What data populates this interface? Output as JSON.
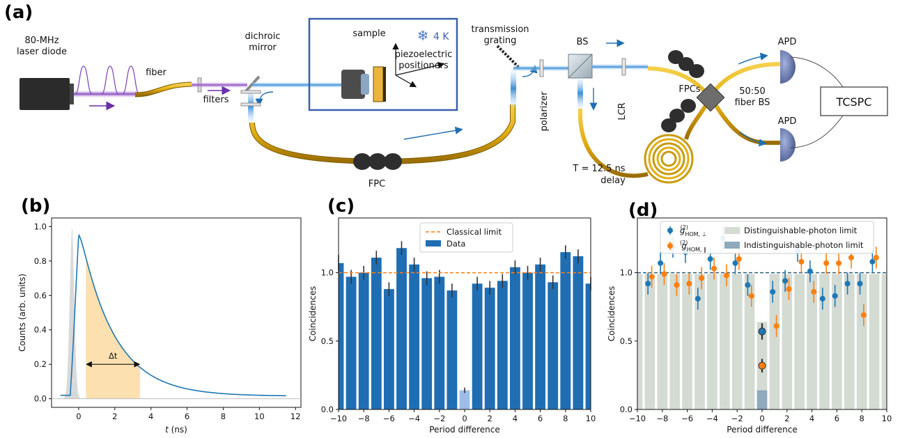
{
  "panels": {
    "a": "(a)",
    "b": "(b)",
    "c": "(c)",
    "d": "(d)"
  },
  "setup": {
    "laser_line1": "80-MHz",
    "laser_line2": "laser diode",
    "fiber": "fiber",
    "dichroic_line1": "dichroic",
    "dichroic_line2": "mirror",
    "filters": "filters",
    "sample": "sample",
    "temperature": "4 K",
    "piezo_line1": "piezoelectric",
    "piezo_line2": "positioners",
    "grating_line1": "transmission",
    "grating_line2": "grating",
    "fpc": "FPC",
    "polarizer": "polarizer",
    "bs": "BS",
    "lcr": "LCR",
    "fpcs": "FPCs",
    "fiber_bs_line1": "50:50",
    "fiber_bs_line2": "fiber BS",
    "delay_line1": "T = 12.5 ns",
    "delay_line2": "delay",
    "apd_top": "APD",
    "apd_bottom": "APD",
    "tcspc": "TCSPC",
    "snowflake_icon": "snowflake-icon"
  },
  "chart_data": [
    {
      "id": "b",
      "type": "line",
      "xlabel": "t (ns)",
      "ylabel": "Counts (arb. units)",
      "xlim": [
        -1.5,
        12.3
      ],
      "ylim": [
        -0.05,
        1.05
      ],
      "xticks": [
        0,
        2,
        4,
        6,
        8,
        10,
        12
      ],
      "yticks": [
        0.0,
        0.2,
        0.4,
        0.6,
        0.8,
        1.0
      ],
      "series": [
        {
          "values_desc": "decay",
          "color": "#1f77b4"
        }
      ],
      "irf_peak_t": -0.35,
      "decay_peak_t": 0.0,
      "decay_tau_ns": 1.9,
      "window": [
        0.4,
        3.4
      ],
      "annotation": "Δt",
      "colors": {
        "decay": "#1f77b4",
        "irf": "#d9d9d9",
        "window": "#fde0b0"
      }
    },
    {
      "id": "c",
      "type": "bar",
      "xlabel": "Period difference",
      "ylabel": "Coincidences",
      "xlim": [
        -10,
        10
      ],
      "ylim": [
        0,
        1.4
      ],
      "xticks": [
        -10,
        -8,
        -6,
        -4,
        -2,
        0,
        2,
        4,
        6,
        8,
        10
      ],
      "yticks": [
        0.0,
        0.5,
        1.0
      ],
      "categories": [
        -10,
        -9,
        -8,
        -7,
        -6,
        -5,
        -4,
        -3,
        -2,
        -1,
        0,
        1,
        2,
        3,
        4,
        5,
        6,
        7,
        8,
        9,
        10
      ],
      "values": [
        1.07,
        0.97,
        1.0,
        1.11,
        0.88,
        1.18,
        1.06,
        0.96,
        0.97,
        0.87,
        0.14,
        0.92,
        0.89,
        0.94,
        1.04,
        1.0,
        1.06,
        0.93,
        1.15,
        1.12,
        0.92
      ],
      "errors": [
        0.06,
        0.05,
        0.05,
        0.05,
        0.05,
        0.05,
        0.05,
        0.05,
        0.05,
        0.05,
        0.02,
        0.05,
        0.05,
        0.05,
        0.05,
        0.05,
        0.05,
        0.05,
        0.05,
        0.05,
        0.05
      ],
      "classical_limit": 1.0,
      "legend": [
        "Classical limit",
        "Data"
      ],
      "legend_position": "top-center",
      "colors": {
        "bar": "#1f6eb4",
        "bar_zero": "#9ebde8",
        "limit": "#ff7f0e",
        "err": "#333333"
      }
    },
    {
      "id": "d",
      "type": "scatter",
      "xlabel": "Period difference",
      "ylabel": "Coincidences",
      "xlim": [
        -10,
        10
      ],
      "ylim": [
        0,
        1.4
      ],
      "xticks": [
        -10,
        -8,
        -6,
        -4,
        -2,
        0,
        2,
        4,
        6,
        8,
        10
      ],
      "yticks": [
        0.0,
        0.5,
        1.0
      ],
      "x": [
        -9,
        -8,
        -7,
        -6,
        -5,
        -4,
        -3,
        -2,
        -1,
        1,
        2,
        3,
        4,
        5,
        6,
        7,
        8,
        9
      ],
      "series": [
        {
          "name_html": "g(2)HOM,⊥",
          "color": "#1f77b4",
          "values": [
            0.92,
            1.07,
            1.19,
            1.15,
            0.81,
            1.1,
            1.25,
            1.07,
            0.91,
            0.86,
            0.94,
            1.16,
            1.01,
            0.81,
            0.83,
            0.92,
            0.92,
            1.08
          ]
        },
        {
          "name_html": "g(2)HOM,∥",
          "color": "#ff7f0e",
          "values": [
            0.97,
            0.99,
            0.91,
            0.92,
            0.96,
            1.03,
            0.98,
            1.1,
            0.83,
            0.61,
            0.88,
            1.08,
            0.86,
            1.07,
            1.07,
            1.11,
            0.69,
            1.11
          ]
        }
      ],
      "center": {
        "perp": 0.57,
        "par": 0.32
      },
      "gray_bars": 0.99,
      "gray_bar_center": 0.64,
      "indist_bar_center": 0.14,
      "limit_line": 1.0,
      "legend": [
        "Distinguishable-photon limit",
        "Indistinguishable-photon limit"
      ],
      "legend_series": [
        "g",
        "HOM, ⊥",
        "HOM, ∥"
      ],
      "legend_position": "top",
      "colors": {
        "gray": "#d3dbd3",
        "indist": "#8fa9bd",
        "limit": "#2d5f7f"
      }
    }
  ]
}
